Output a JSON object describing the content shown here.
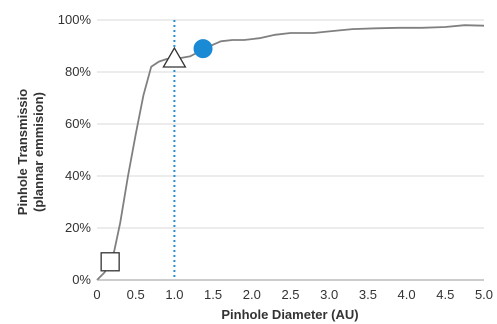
{
  "chart_data": {
    "type": "line",
    "title": "",
    "xlabel": "Pinhole Diameter (AU)",
    "ylabel": [
      "Pinhole Transmissio",
      "(plannar emmision)"
    ],
    "xlim": [
      0,
      5.0
    ],
    "ylim": [
      0,
      100
    ],
    "x_ticks": [
      "0",
      "0.5",
      "1.0",
      "1.5",
      "2.0",
      "2.5",
      "3.0",
      "3.5",
      "4.0",
      "4.5",
      "5.0"
    ],
    "y_ticks": [
      {
        "value": 0,
        "label": "0%"
      },
      {
        "value": 20,
        "label": "20%"
      },
      {
        "value": 40,
        "label": "40%"
      },
      {
        "value": 60,
        "label": "60%"
      },
      {
        "value": 80,
        "label": "80%"
      },
      {
        "value": 100,
        "label": "100%"
      }
    ],
    "grid": "horizontal",
    "series": [
      {
        "color": "#808080",
        "points": [
          [
            0,
            0
          ],
          [
            0.1,
            3
          ],
          [
            0.2,
            8
          ],
          [
            0.3,
            22
          ],
          [
            0.4,
            40
          ],
          [
            0.5,
            56
          ],
          [
            0.6,
            71
          ],
          [
            0.7,
            82
          ],
          [
            0.8,
            84
          ],
          [
            0.9,
            85
          ],
          [
            1.0,
            85
          ],
          [
            1.1,
            85.5
          ],
          [
            1.2,
            86
          ],
          [
            1.3,
            87.5
          ],
          [
            1.4,
            89
          ],
          [
            1.5,
            90.5
          ],
          [
            1.6,
            91.8
          ],
          [
            1.75,
            92.3
          ],
          [
            1.9,
            92.3
          ],
          [
            2.1,
            93
          ],
          [
            2.3,
            94.3
          ],
          [
            2.5,
            95
          ],
          [
            2.8,
            95
          ],
          [
            3.0,
            95.6
          ],
          [
            3.3,
            96.5
          ],
          [
            3.6,
            96.8
          ],
          [
            3.9,
            97
          ],
          [
            4.2,
            97
          ],
          [
            4.5,
            97.3
          ],
          [
            4.75,
            98
          ],
          [
            5.0,
            97.8
          ]
        ]
      }
    ],
    "reference_line": {
      "x": 1.0,
      "color": "#2a8fd0",
      "style": "dotted"
    },
    "markers": [
      {
        "shape": "square",
        "x": 0.17,
        "y": 7,
        "fill": "#ffffff",
        "stroke": "#333333"
      },
      {
        "shape": "triangle",
        "x": 1.0,
        "y": 85,
        "fill": "#ffffff",
        "stroke": "#333333"
      },
      {
        "shape": "circle",
        "x": 1.37,
        "y": 89,
        "fill": "#1a8ad4",
        "stroke": "#1a8ad4"
      }
    ],
    "colors": {
      "grid": "#d9d9d9",
      "axis": "#999999"
    }
  }
}
